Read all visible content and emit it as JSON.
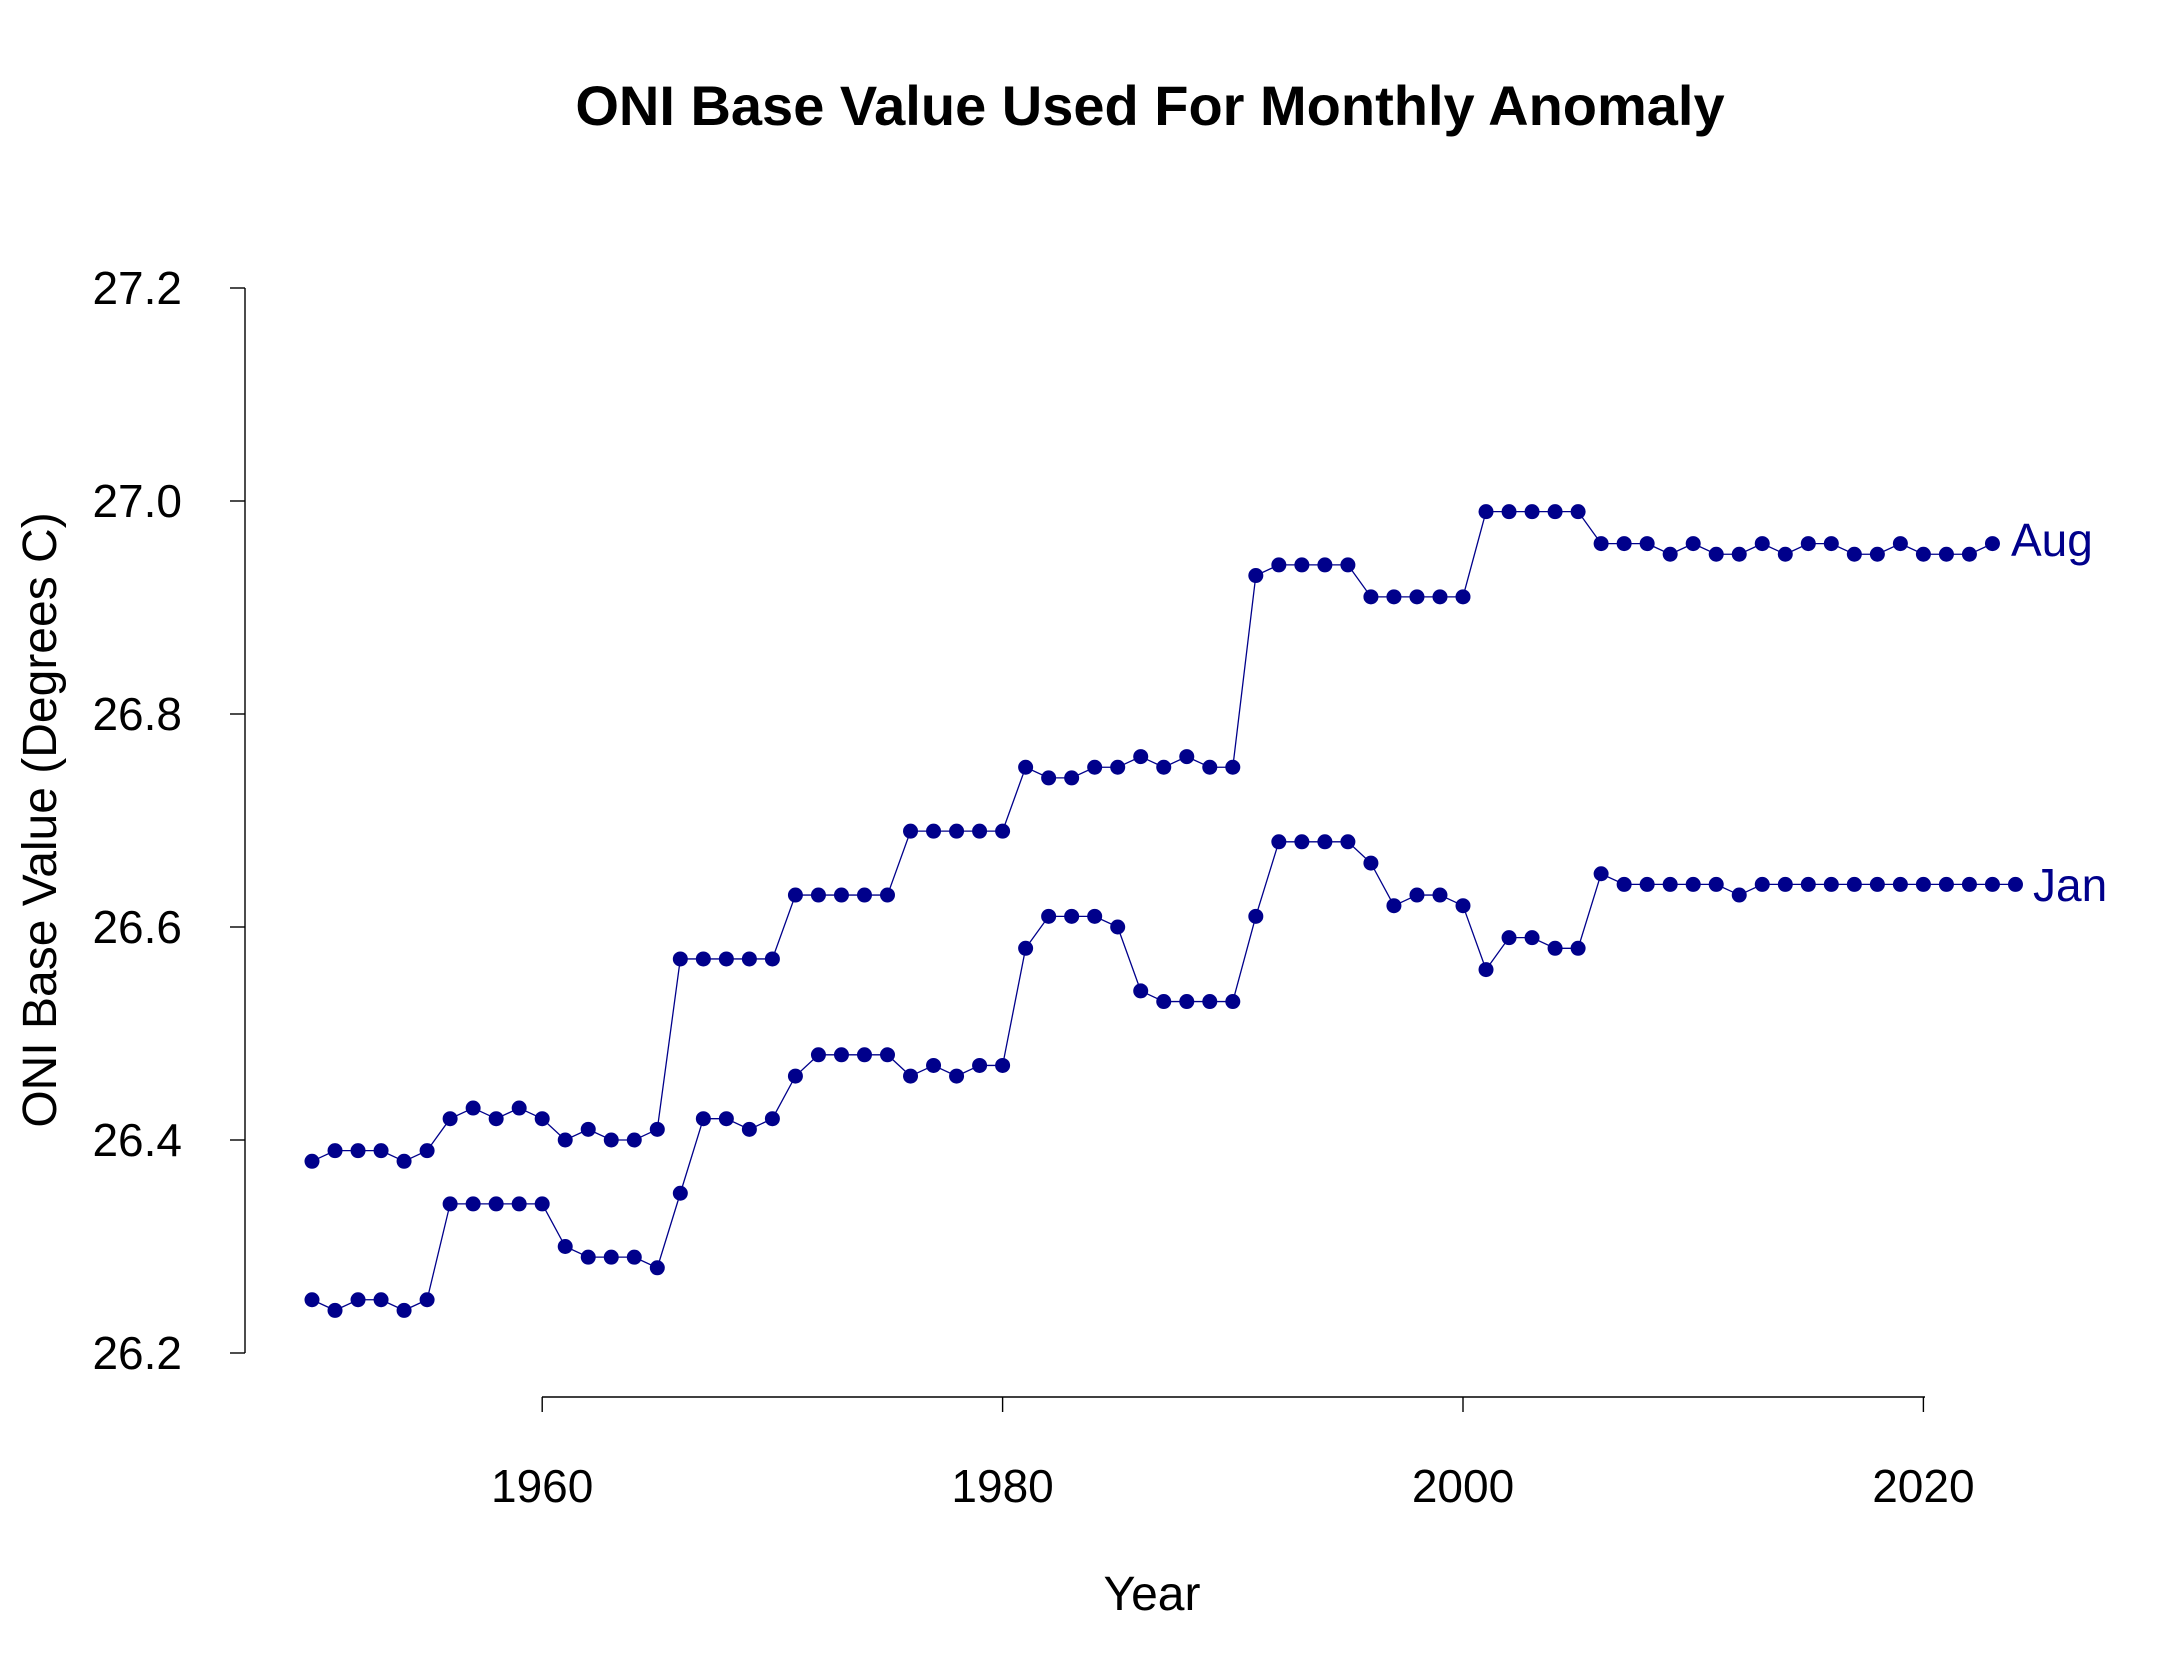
{
  "chart_data": {
    "type": "line",
    "title": "ONI Base Value Used For Monthly Anomaly",
    "xlabel": "Year",
    "ylabel": "ONI Base Value (Degrees C)",
    "xlim": [
      1950,
      2024
    ],
    "ylim": [
      26.2,
      27.2
    ],
    "x_ticks": [
      1960,
      1980,
      2000,
      2020
    ],
    "x_tick_labels": [
      "1960",
      "1980",
      "2000",
      "2020"
    ],
    "y_ticks": [
      26.2,
      26.4,
      26.6,
      26.8,
      27.0,
      27.2
    ],
    "y_tick_labels": [
      "26.2",
      "26.4",
      "26.6",
      "26.8",
      "27.0",
      "27.2"
    ],
    "grid": false,
    "legend": "none",
    "color": "#00008b",
    "series": [
      {
        "name": "Aug",
        "label_text": "Aug",
        "x": [
          1950,
          1951,
          1952,
          1953,
          1954,
          1955,
          1956,
          1957,
          1958,
          1959,
          1960,
          1961,
          1962,
          1963,
          1964,
          1965,
          1966,
          1967,
          1968,
          1969,
          1970,
          1971,
          1972,
          1973,
          1974,
          1975,
          1976,
          1977,
          1978,
          1979,
          1980,
          1981,
          1982,
          1983,
          1984,
          1985,
          1986,
          1987,
          1988,
          1989,
          1990,
          1991,
          1992,
          1993,
          1994,
          1995,
          1996,
          1997,
          1998,
          1999,
          2000,
          2001,
          2002,
          2003,
          2004,
          2005,
          2006,
          2007,
          2008,
          2009,
          2010,
          2011,
          2012,
          2013,
          2014,
          2015,
          2016,
          2017,
          2018,
          2019,
          2020,
          2021,
          2022,
          2023
        ],
        "values": [
          26.38,
          26.39,
          26.39,
          26.39,
          26.38,
          26.39,
          26.42,
          26.43,
          26.42,
          26.43,
          26.42,
          26.4,
          26.41,
          26.4,
          26.4,
          26.41,
          26.57,
          26.57,
          26.57,
          26.57,
          26.57,
          26.63,
          26.63,
          26.63,
          26.63,
          26.63,
          26.69,
          26.69,
          26.69,
          26.69,
          26.69,
          26.75,
          26.74,
          26.74,
          26.75,
          26.75,
          26.76,
          26.75,
          26.76,
          26.75,
          26.75,
          26.93,
          26.94,
          26.94,
          26.94,
          26.94,
          26.91,
          26.91,
          26.91,
          26.91,
          26.91,
          26.99,
          26.99,
          26.99,
          26.99,
          26.99,
          26.96,
          26.96,
          26.96,
          26.95,
          26.96,
          26.95,
          26.95,
          26.96,
          26.95,
          26.96,
          26.96,
          26.95,
          26.95,
          26.96,
          26.95,
          26.95,
          26.95,
          26.96
        ]
      },
      {
        "name": "Jan",
        "label_text": "Jan",
        "x": [
          1950,
          1951,
          1952,
          1953,
          1954,
          1955,
          1956,
          1957,
          1958,
          1959,
          1960,
          1961,
          1962,
          1963,
          1964,
          1965,
          1966,
          1967,
          1968,
          1969,
          1970,
          1971,
          1972,
          1973,
          1974,
          1975,
          1976,
          1977,
          1978,
          1979,
          1980,
          1981,
          1982,
          1983,
          1984,
          1985,
          1986,
          1987,
          1988,
          1989,
          1990,
          1991,
          1992,
          1993,
          1994,
          1995,
          1996,
          1997,
          1998,
          1999,
          2000,
          2001,
          2002,
          2003,
          2004,
          2005,
          2006,
          2007,
          2008,
          2009,
          2010,
          2011,
          2012,
          2013,
          2014,
          2015,
          2016,
          2017,
          2018,
          2019,
          2020,
          2021,
          2022,
          2023,
          2024
        ],
        "values": [
          26.25,
          26.24,
          26.25,
          26.25,
          26.24,
          26.25,
          26.34,
          26.34,
          26.34,
          26.34,
          26.34,
          26.3,
          26.29,
          26.29,
          26.29,
          26.28,
          26.35,
          26.42,
          26.42,
          26.41,
          26.42,
          26.46,
          26.48,
          26.48,
          26.48,
          26.48,
          26.46,
          26.47,
          26.46,
          26.47,
          26.47,
          26.58,
          26.61,
          26.61,
          26.61,
          26.6,
          26.54,
          26.53,
          26.53,
          26.53,
          26.53,
          26.61,
          26.68,
          26.68,
          26.68,
          26.68,
          26.66,
          26.62,
          26.63,
          26.63,
          26.62,
          26.56,
          26.59,
          26.59,
          26.58,
          26.58,
          26.65,
          26.64,
          26.64,
          26.64,
          26.64,
          26.64,
          26.63,
          26.64,
          26.64,
          26.64,
          26.64,
          26.64,
          26.64,
          26.64,
          26.64,
          26.64,
          26.64,
          26.64,
          26.64
        ]
      }
    ]
  }
}
